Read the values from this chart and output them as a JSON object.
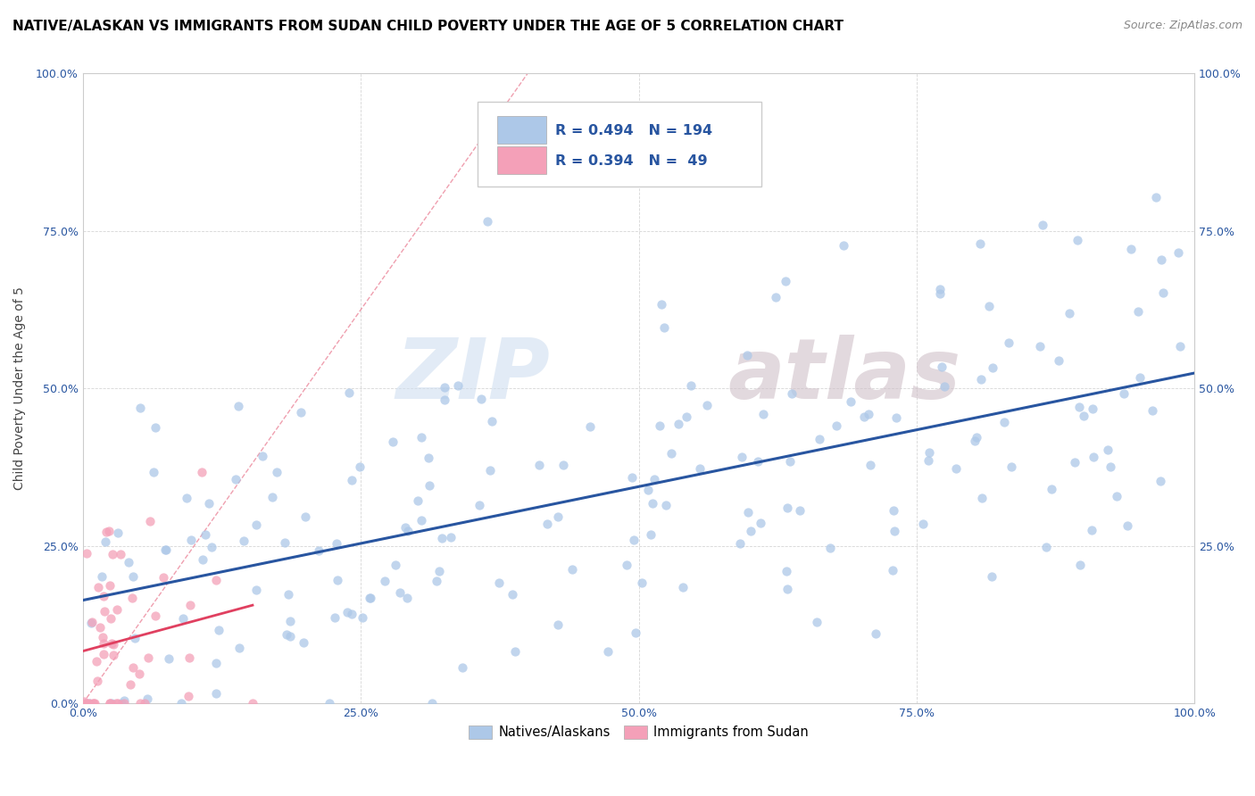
{
  "title": "NATIVE/ALASKAN VS IMMIGRANTS FROM SUDAN CHILD POVERTY UNDER THE AGE OF 5 CORRELATION CHART",
  "source": "Source: ZipAtlas.com",
  "ylabel_label": "Child Poverty Under the Age of 5",
  "xlim": [
    0,
    1.0
  ],
  "ylim": [
    0,
    1.0
  ],
  "xtick_labels": [
    "0.0%",
    "25.0%",
    "50.0%",
    "75.0%",
    "100.0%"
  ],
  "xtick_vals": [
    0.0,
    0.25,
    0.5,
    0.75,
    1.0
  ],
  "ytick_labels": [
    "0.0%",
    "25.0%",
    "50.0%",
    "75.0%",
    "100.0%"
  ],
  "ytick_vals": [
    0.0,
    0.25,
    0.5,
    0.75,
    1.0
  ],
  "right_ytick_labels": [
    "25.0%",
    "50.0%",
    "75.0%",
    "100.0%"
  ],
  "right_ytick_vals": [
    0.25,
    0.5,
    0.75,
    1.0
  ],
  "blue_R": 0.494,
  "blue_N": 194,
  "pink_R": 0.394,
  "pink_N": 49,
  "blue_color": "#adc8e8",
  "pink_color": "#f4a0b8",
  "blue_line_color": "#2855a0",
  "pink_line_color": "#e04060",
  "watermark_zip": "ZIP",
  "watermark_atlas": "atlas",
  "legend_blue_label": "Natives/Alaskans",
  "legend_pink_label": "Immigrants from Sudan",
  "title_fontsize": 11,
  "axis_label_fontsize": 10,
  "tick_fontsize": 9,
  "blue_seed": 42,
  "pink_seed": 7
}
